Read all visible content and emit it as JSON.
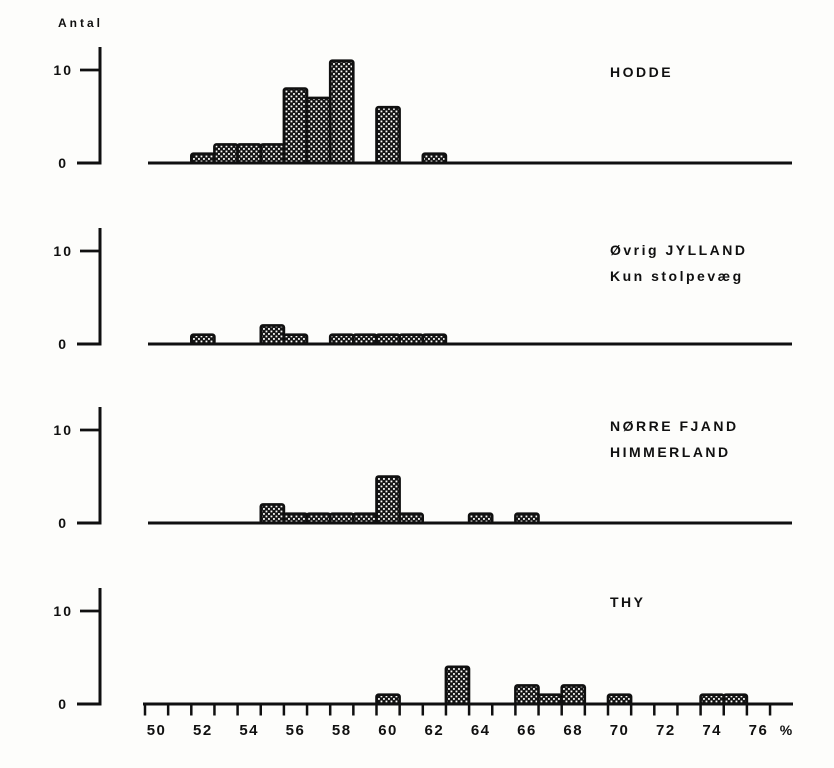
{
  "figure": {
    "background": "#fdfdfb",
    "ink": "#101010"
  },
  "chart_data": {
    "type": "bar",
    "subtype": "stacked-small-multiple-histograms",
    "title": "",
    "ylabel": "Antal",
    "xlabel": "%",
    "y_ticks": [
      0,
      10
    ],
    "ylim": [
      0,
      12
    ],
    "grid": false,
    "legend": "none",
    "bin_width_pct": 1,
    "x_tick_labels": [
      "50",
      "52",
      "54",
      "56",
      "58",
      "60",
      "62",
      "64",
      "66",
      "68",
      "70",
      "72",
      "74",
      "76"
    ],
    "x_unit_label": "%",
    "x_edge_ticks": {
      "start": 49.5,
      "end": 76.5,
      "step": 1
    },
    "y_tick_labels": [
      "10",
      "0"
    ],
    "panels": [
      {
        "label_lines": [
          "HODDE"
        ],
        "bars": [
          {
            "pct": 52,
            "count": 1
          },
          {
            "pct": 53,
            "count": 2
          },
          {
            "pct": 54,
            "count": 2
          },
          {
            "pct": 55,
            "count": 2
          },
          {
            "pct": 56,
            "count": 8
          },
          {
            "pct": 57,
            "count": 7
          },
          {
            "pct": 58,
            "count": 11
          },
          {
            "pct": 60,
            "count": 6
          },
          {
            "pct": 62,
            "count": 1
          }
        ]
      },
      {
        "label_lines": [
          "Øvrig JYLLAND",
          "Kun stolpevæg"
        ],
        "bars": [
          {
            "pct": 52,
            "count": 1
          },
          {
            "pct": 55,
            "count": 2
          },
          {
            "pct": 56,
            "count": 1
          },
          {
            "pct": 58,
            "count": 1
          },
          {
            "pct": 59,
            "count": 1
          },
          {
            "pct": 60,
            "count": 1
          },
          {
            "pct": 61,
            "count": 1
          },
          {
            "pct": 62,
            "count": 1
          }
        ]
      },
      {
        "label_lines": [
          "NØRRE FJAND",
          "HIMMERLAND"
        ],
        "bars": [
          {
            "pct": 55,
            "count": 2
          },
          {
            "pct": 56,
            "count": 1
          },
          {
            "pct": 57,
            "count": 1
          },
          {
            "pct": 58,
            "count": 1
          },
          {
            "pct": 59,
            "count": 1
          },
          {
            "pct": 60,
            "count": 5
          },
          {
            "pct": 61,
            "count": 1
          },
          {
            "pct": 64,
            "count": 1
          },
          {
            "pct": 66,
            "count": 1
          }
        ]
      },
      {
        "label_lines": [
          "THY"
        ],
        "bars": [
          {
            "pct": 60,
            "count": 1
          },
          {
            "pct": 63,
            "count": 4
          },
          {
            "pct": 66,
            "count": 2
          },
          {
            "pct": 67,
            "count": 1
          },
          {
            "pct": 68,
            "count": 2
          },
          {
            "pct": 70,
            "count": 1
          },
          {
            "pct": 74,
            "count": 1
          },
          {
            "pct": 75,
            "count": 1
          }
        ]
      }
    ]
  }
}
